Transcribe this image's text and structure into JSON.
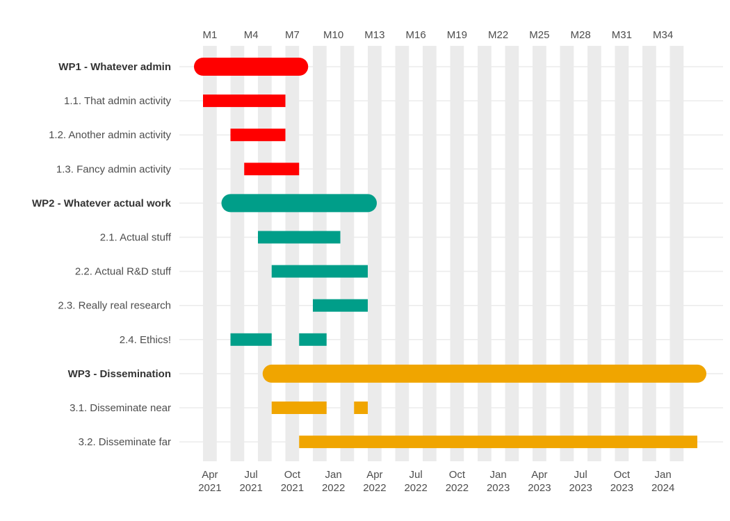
{
  "chart_data": {
    "type": "gantt",
    "title": "",
    "month_ticks": [
      "M1",
      "M4",
      "M7",
      "M10",
      "M13",
      "M16",
      "M19",
      "M22",
      "M25",
      "M28",
      "M31",
      "M34"
    ],
    "date_ticks": [
      {
        "month": 1,
        "label_top": "Apr",
        "label_bottom": "2021"
      },
      {
        "month": 4,
        "label_top": "Jul",
        "label_bottom": "2021"
      },
      {
        "month": 7,
        "label_top": "Oct",
        "label_bottom": "2021"
      },
      {
        "month": 10,
        "label_top": "Jan",
        "label_bottom": "2022"
      },
      {
        "month": 13,
        "label_top": "Apr",
        "label_bottom": "2022"
      },
      {
        "month": 16,
        "label_top": "Jul",
        "label_bottom": "2022"
      },
      {
        "month": 19,
        "label_top": "Oct",
        "label_bottom": "2022"
      },
      {
        "month": 22,
        "label_top": "Jan",
        "label_bottom": "2023"
      },
      {
        "month": 25,
        "label_top": "Apr",
        "label_bottom": "2023"
      },
      {
        "month": 28,
        "label_top": "Jul",
        "label_bottom": "2023"
      },
      {
        "month": 31,
        "label_top": "Oct",
        "label_bottom": "2023"
      },
      {
        "month": 34,
        "label_top": "Jan",
        "label_bottom": "2024"
      }
    ],
    "month_range": [
      1,
      36
    ],
    "colors": {
      "WP1": "#ff0000",
      "WP2": "#009e89",
      "WP3": "#f0a500",
      "band": "#ebebeb",
      "grid": "#ebebeb"
    },
    "tasks": [
      {
        "label": "WP1 - Whatever admin",
        "wp": "WP1",
        "is_wp": true,
        "segments": [
          [
            1,
            8
          ]
        ]
      },
      {
        "label": "1.1. That admin activity",
        "wp": "WP1",
        "is_wp": false,
        "segments": [
          [
            1,
            7
          ]
        ]
      },
      {
        "label": "1.2. Another admin activity",
        "wp": "WP1",
        "is_wp": false,
        "segments": [
          [
            3,
            7
          ]
        ]
      },
      {
        "label": "1.3. Fancy admin activity",
        "wp": "WP1",
        "is_wp": false,
        "segments": [
          [
            4,
            8
          ]
        ]
      },
      {
        "label": "WP2 - Whatever actual work",
        "wp": "WP2",
        "is_wp": true,
        "segments": [
          [
            3,
            13
          ]
        ]
      },
      {
        "label": "2.1. Actual stuff",
        "wp": "WP2",
        "is_wp": false,
        "segments": [
          [
            5,
            11
          ]
        ]
      },
      {
        "label": "2.2. Actual R&D stuff",
        "wp": "WP2",
        "is_wp": false,
        "segments": [
          [
            6,
            13
          ]
        ]
      },
      {
        "label": "2.3. Really real research",
        "wp": "WP2",
        "is_wp": false,
        "segments": [
          [
            9,
            13
          ]
        ]
      },
      {
        "label": "2.4. Ethics!",
        "wp": "WP2",
        "is_wp": false,
        "segments": [
          [
            3,
            6
          ],
          [
            8,
            10
          ]
        ]
      },
      {
        "label": "WP3 - Dissemination",
        "wp": "WP3",
        "is_wp": true,
        "segments": [
          [
            6,
            37
          ]
        ]
      },
      {
        "label": "3.1. Disseminate near",
        "wp": "WP3",
        "is_wp": false,
        "segments": [
          [
            6,
            10
          ],
          [
            12,
            13
          ]
        ]
      },
      {
        "label": "3.2. Disseminate far",
        "wp": "WP3",
        "is_wp": false,
        "segments": [
          [
            8,
            37
          ]
        ]
      }
    ]
  }
}
